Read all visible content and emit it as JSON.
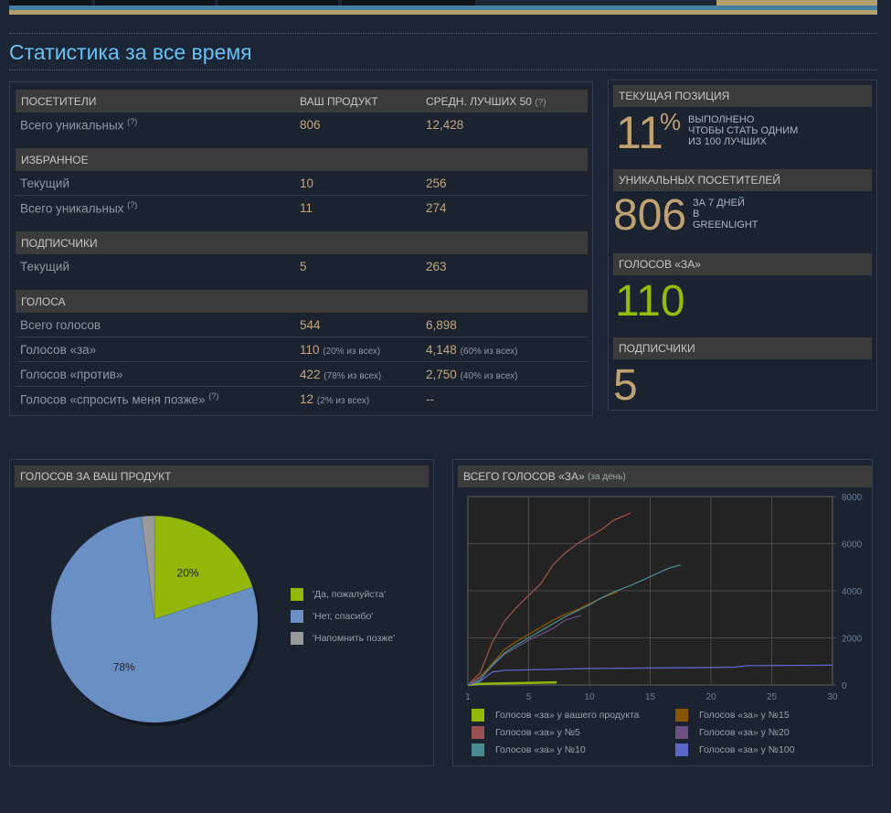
{
  "page_title": "Статистика за все время",
  "table": {
    "headers": [
      "ПОСЕТИТЕЛИ",
      "ВАШ ПРОДУКТ",
      "СРЕДН. ЛУЧШИХ 50"
    ],
    "help": "(?)",
    "visitors": [
      {
        "label": "Всего уникальных",
        "yours": "806",
        "avg": "12,428"
      }
    ],
    "favorites_title": "ИЗБРАННОЕ",
    "favorites": [
      {
        "label": "Текущий",
        "yours": "10",
        "avg": "256"
      },
      {
        "label": "Всего уникальных",
        "yours": "11",
        "avg": "274"
      }
    ],
    "followers_title": "ПОДПИСЧИКИ",
    "followers": [
      {
        "label": "Текущий",
        "yours": "5",
        "avg": "263"
      }
    ],
    "votes_title": "ГОЛОСА",
    "votes": [
      {
        "label": "Всего голосов",
        "yours": "544",
        "yours_note": "",
        "avg": "6,898",
        "avg_note": ""
      },
      {
        "label": "Голосов «за»",
        "yours": "110",
        "yours_note": "(20% из всех)",
        "avg": "4,148",
        "avg_note": "(60% из всех)"
      },
      {
        "label": "Голосов «против»",
        "yours": "422",
        "yours_note": "(78% из всех)",
        "avg": "2,750",
        "avg_note": "(40% из всех)"
      },
      {
        "label": "Голосов «спросить меня позже»",
        "yours": "12",
        "yours_note": "(2% из всех)",
        "avg": "--",
        "avg_note": ""
      }
    ]
  },
  "summary": {
    "position_title": "ТЕКУЩАЯ ПОЗИЦИЯ",
    "position_value": "11",
    "position_unit": "%",
    "position_caption": [
      "ВЫПОЛНЕНО",
      "ЧТОБЫ СТАТЬ ОДНИМ",
      "ИЗ 100 ЛУЧШИХ"
    ],
    "visitors_title": "УНИКАЛЬНЫХ ПОСЕТИТЕЛЕЙ",
    "visitors_value": "806",
    "visitors_caption": [
      "ЗА 7 ДНЕЙ",
      "В",
      "GREENLIGHT"
    ],
    "yes_title": "ГОЛОСОВ «ЗА»",
    "yes_value": "110",
    "followers_title": "ПОДПИСЧИКИ",
    "followers_value": "5"
  },
  "chart_data": [
    {
      "type": "pie",
      "title": "ГОЛОСОВ ЗА ВАШ ПРОДУКТ",
      "slices": [
        {
          "label": "'Да, пожалуйста'",
          "value": 20,
          "display": "20%",
          "color": "#93b707"
        },
        {
          "label": "'Нет, спасибо'",
          "value": 78,
          "display": "78%",
          "color": "#6a8fc4"
        },
        {
          "label": "'Напомнить позже'",
          "value": 2,
          "display": "",
          "color": "#9a9a9a"
        }
      ],
      "legend": "right"
    },
    {
      "type": "line",
      "title": "ВСЕГО ГОЛОСОВ «ЗА»",
      "subtitle": "(за день)",
      "xlim": [
        0,
        30
      ],
      "ylim": [
        0,
        8000
      ],
      "x_ticks": [
        {
          "v": 0,
          "label": "1"
        },
        {
          "v": 5,
          "label": "5"
        },
        {
          "v": 10,
          "label": "10"
        },
        {
          "v": 15,
          "label": "15"
        },
        {
          "v": 20,
          "label": "20"
        },
        {
          "v": 25,
          "label": "25"
        },
        {
          "v": 30,
          "label": "30"
        }
      ],
      "y_ticks": [
        0,
        2000,
        4000,
        6000,
        8000
      ],
      "grid": true,
      "legend": "bottom",
      "series": [
        {
          "name": "Голосов «за» у вашего продукта",
          "color": "#93b707",
          "points": [
            [
              0,
              0
            ],
            [
              1,
              50
            ],
            [
              3,
              70
            ],
            [
              7.3,
              110
            ]
          ]
        },
        {
          "name": "Голосов «за» у №15",
          "color": "#8a5500",
          "points": [
            [
              0,
              0
            ],
            [
              1,
              350
            ],
            [
              2,
              900
            ],
            [
              3,
              1500
            ],
            [
              4,
              1850
            ],
            [
              5,
              2150
            ],
            [
              6,
              2450
            ],
            [
              7,
              2750
            ],
            [
              8,
              3000
            ],
            [
              9,
              3200
            ],
            [
              10,
              3450
            ],
            [
              11,
              3700
            ],
            [
              12.3,
              3950
            ]
          ]
        },
        {
          "name": "Голосов «за» у №5",
          "color": "#9a5050",
          "points": [
            [
              0,
              0
            ],
            [
              1,
              500
            ],
            [
              2,
              1800
            ],
            [
              3,
              2700
            ],
            [
              4,
              3300
            ],
            [
              5,
              3800
            ],
            [
              6,
              4300
            ],
            [
              7,
              5100
            ],
            [
              8,
              5600
            ],
            [
              9,
              6000
            ],
            [
              10,
              6300
            ],
            [
              11,
              6600
            ],
            [
              12,
              7000
            ],
            [
              13.4,
              7300
            ]
          ]
        },
        {
          "name": "Голосов «за» у №20",
          "color": "#6a4f80",
          "points": [
            [
              0,
              0
            ],
            [
              1,
              300
            ],
            [
              2,
              800
            ],
            [
              3,
              1300
            ],
            [
              4,
              1600
            ],
            [
              5,
              1900
            ],
            [
              6,
              2150
            ],
            [
              7,
              2400
            ],
            [
              8,
              2750
            ],
            [
              9.3,
              2950
            ]
          ]
        },
        {
          "name": "Голосов «за» у №10",
          "color": "#4a8a90",
          "points": [
            [
              0,
              0
            ],
            [
              1,
              200
            ],
            [
              2,
              850
            ],
            [
              3,
              1350
            ],
            [
              4,
              1700
            ],
            [
              5,
              2000
            ],
            [
              6,
              2300
            ],
            [
              7,
              2600
            ],
            [
              8,
              2900
            ],
            [
              9,
              3150
            ],
            [
              10,
              3400
            ],
            [
              11,
              3700
            ],
            [
              12,
              3950
            ],
            [
              13.5,
              4250
            ],
            [
              15,
              4600
            ],
            [
              16.5,
              4950
            ],
            [
              17.5,
              5100
            ]
          ]
        },
        {
          "name": "Голосов «за» у №100",
          "color": "#5a66c8",
          "points": [
            [
              0,
              0
            ],
            [
              1,
              150
            ],
            [
              2,
              550
            ],
            [
              3,
              620
            ],
            [
              5,
              640
            ],
            [
              10,
              700
            ],
            [
              15,
              720
            ],
            [
              20,
              740
            ],
            [
              22,
              760
            ],
            [
              23,
              820
            ],
            [
              30,
              840
            ]
          ]
        }
      ]
    }
  ]
}
